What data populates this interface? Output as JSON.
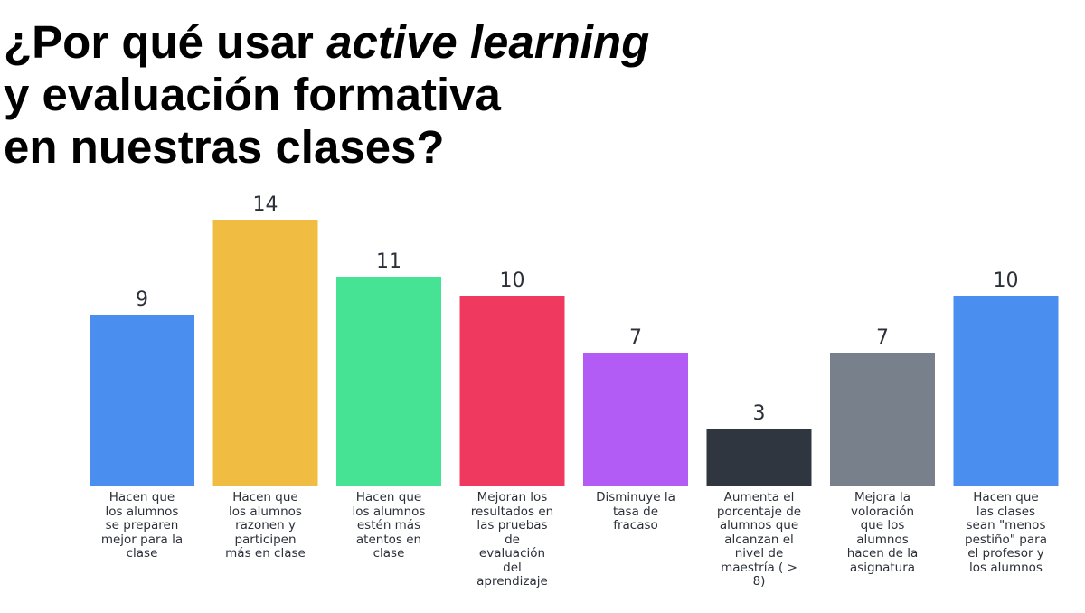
{
  "title": {
    "line1_prefix": "¿Por qué usar ",
    "line1_emph": "active learning",
    "line2": "y evaluación formativa",
    "line3": "en nuestras clases?"
  },
  "chart_data": {
    "type": "bar",
    "title": "¿Por qué usar active learning y evaluación formativa en nuestras clases?",
    "xlabel": "",
    "ylabel": "",
    "ylim": [
      0,
      14
    ],
    "grid": false,
    "categories": [
      "Hacen que los alumnos se preparen mejor para la clase",
      "Hacen que los alumnos razonen y participen más en clase",
      "Hacen que los alumnos estén más atentos en clase",
      "Mejoran los resultados en las pruebas de evaluación del aprendizaje",
      "Disminuye la tasa de fracaso",
      "Aumenta el porcentaje de alumnos que alcanzan el nivel de maestría ( > 8)",
      "Mejora la voloración que los alumnos hacen de la asignatura",
      "Hacen que las clases sean \"menos pestiño\" para el profesor y los alumnos"
    ],
    "label_lines": [
      [
        "Hacen que",
        "los alumnos",
        "se preparen",
        "mejor para la",
        "clase"
      ],
      [
        "Hacen que",
        "los alumnos",
        "razonen y",
        "participen",
        "más en clase"
      ],
      [
        "Hacen que",
        "los alumnos",
        "estén más",
        "atentos en",
        "clase"
      ],
      [
        "Mejoran los",
        "resultados en",
        "las pruebas",
        "de",
        "evaluación",
        "del",
        "aprendizaje"
      ],
      [
        "Disminuye la",
        "tasa de",
        "fracaso"
      ],
      [
        "Aumenta el",
        "porcentaje de",
        "alumnos que",
        "alcanzan el",
        "nivel de",
        "maestría ( >",
        "8)"
      ],
      [
        "Mejora la",
        "voloración",
        "que los",
        "alumnos",
        "hacen de la",
        "asignatura"
      ],
      [
        "Hacen que",
        "las clases",
        "sean \"menos",
        "pestiño\" para",
        "el profesor y",
        "los alumnos"
      ]
    ],
    "values": [
      9,
      14,
      11,
      10,
      7,
      3,
      7,
      10
    ],
    "colors": [
      "#4a8ff0",
      "#f0bc42",
      "#46e394",
      "#f0395f",
      "#b25cf5",
      "#2f3640",
      "#77808b",
      "#4a8ff0"
    ]
  }
}
